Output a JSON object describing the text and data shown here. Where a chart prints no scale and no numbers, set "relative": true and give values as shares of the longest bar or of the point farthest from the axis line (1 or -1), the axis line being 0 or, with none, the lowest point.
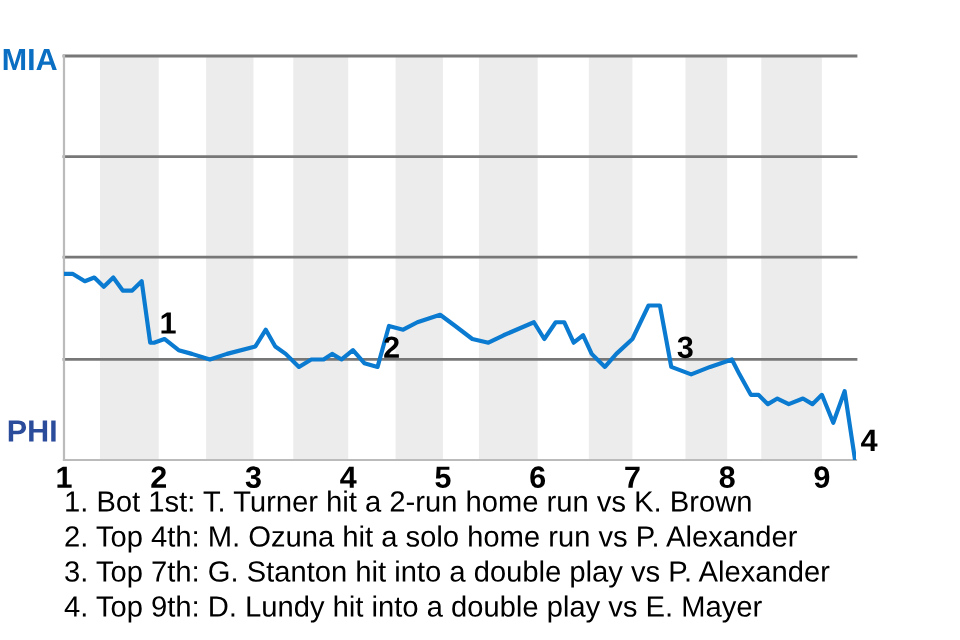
{
  "chart_data": {
    "type": "line",
    "relative": true,
    "x": [
      1.0,
      1.09,
      1.22,
      1.32,
      1.42,
      1.52,
      1.62,
      1.72,
      1.82,
      1.91,
      1.95,
      2.06,
      2.21,
      2.35,
      2.54,
      2.72,
      3.02,
      3.13,
      3.23,
      3.34,
      3.48,
      3.61,
      3.74,
      3.83,
      3.93,
      4.05,
      4.17,
      4.31,
      4.43,
      4.58,
      4.73,
      4.97,
      5.13,
      5.31,
      5.48,
      5.64,
      5.96,
      6.07,
      6.19,
      6.28,
      6.38,
      6.48,
      6.57,
      6.71,
      6.83,
      7.0,
      7.17,
      7.29,
      7.41,
      7.62,
      7.82,
      8.05,
      8.13,
      8.25,
      8.33,
      8.43,
      8.53,
      8.65,
      8.8,
      8.9,
      9.0,
      9.12,
      9.24,
      9.35
    ],
    "series": [
      {
        "color": "#0a7bd0",
        "values": [
          1,
          1,
          0.96,
          0.98,
          0.93,
          0.98,
          0.91,
          0.91,
          0.96,
          0.63,
          0.63,
          0.65,
          0.59,
          0.57,
          0.54,
          0.57,
          0.61,
          0.7,
          0.61,
          0.57,
          0.5,
          0.54,
          0.54,
          0.57,
          0.54,
          0.59,
          0.52,
          0.5,
          0.72,
          0.7,
          0.74,
          0.78,
          0.72,
          0.65,
          0.63,
          0.67,
          0.74,
          0.65,
          0.74,
          0.74,
          0.63,
          0.67,
          0.57,
          0.5,
          0.57,
          0.65,
          0.83,
          0.83,
          0.5,
          0.46,
          0.5,
          0.54,
          0.46,
          0.35,
          0.35,
          0.3,
          0.33,
          0.3,
          0.33,
          0.3,
          0.35,
          0.2,
          0.37,
          0
        ]
      }
    ],
    "xlim": [
      1,
      9.36
    ],
    "xticks": [
      1,
      2,
      3,
      4,
      5,
      6,
      7,
      8,
      9
    ],
    "ref_lines": [
      {
        "axis": "y",
        "value": 0.54,
        "color": "#777777"
      },
      {
        "axis": "y",
        "value": 1.09,
        "color": "#777777"
      },
      {
        "axis": "y",
        "value": 1.63,
        "color": "#777777"
      },
      {
        "axis": "y",
        "value": 2.17,
        "color": "#777777"
      }
    ],
    "bands": [
      {
        "axis": "x",
        "from": 1.38,
        "to": 2,
        "color": "#ececec"
      },
      {
        "axis": "x",
        "from": 2.5,
        "to": 3,
        "color": "#ececec"
      },
      {
        "axis": "x",
        "from": 3.42,
        "to": 4,
        "color": "#ececec"
      },
      {
        "axis": "x",
        "from": 4.5,
        "to": 5,
        "color": "#ececec"
      },
      {
        "axis": "x",
        "from": 5.38,
        "to": 6,
        "color": "#ececec"
      },
      {
        "axis": "x",
        "from": 6.54,
        "to": 7,
        "color": "#ececec"
      },
      {
        "axis": "x",
        "from": 7.56,
        "to": 8,
        "color": "#ececec"
      },
      {
        "axis": "x",
        "from": 8.36,
        "to": 9,
        "color": "#ececec"
      }
    ],
    "annotations": [
      "MIA",
      "PHI",
      {
        "text": "1",
        "x": 1.95,
        "y": 0.63
      },
      {
        "text": "2",
        "x": 4.31,
        "y": 0.5
      },
      {
        "text": "3",
        "x": 7.41,
        "y": 0.5
      },
      {
        "text": "4",
        "x": 9.35,
        "y": 0
      },
      "1. Bot 1st: T. Turner hit a 2-run home run vs K. Brown",
      "2. Top 4th: M. Ozuna hit a solo home run vs P. Alexander",
      "3. Top 7th: G. Stanton hit into a double play vs P. Alexander",
      "4. Top 9th: D. Lundy hit into a double play vs E. Mayer"
    ]
  }
}
